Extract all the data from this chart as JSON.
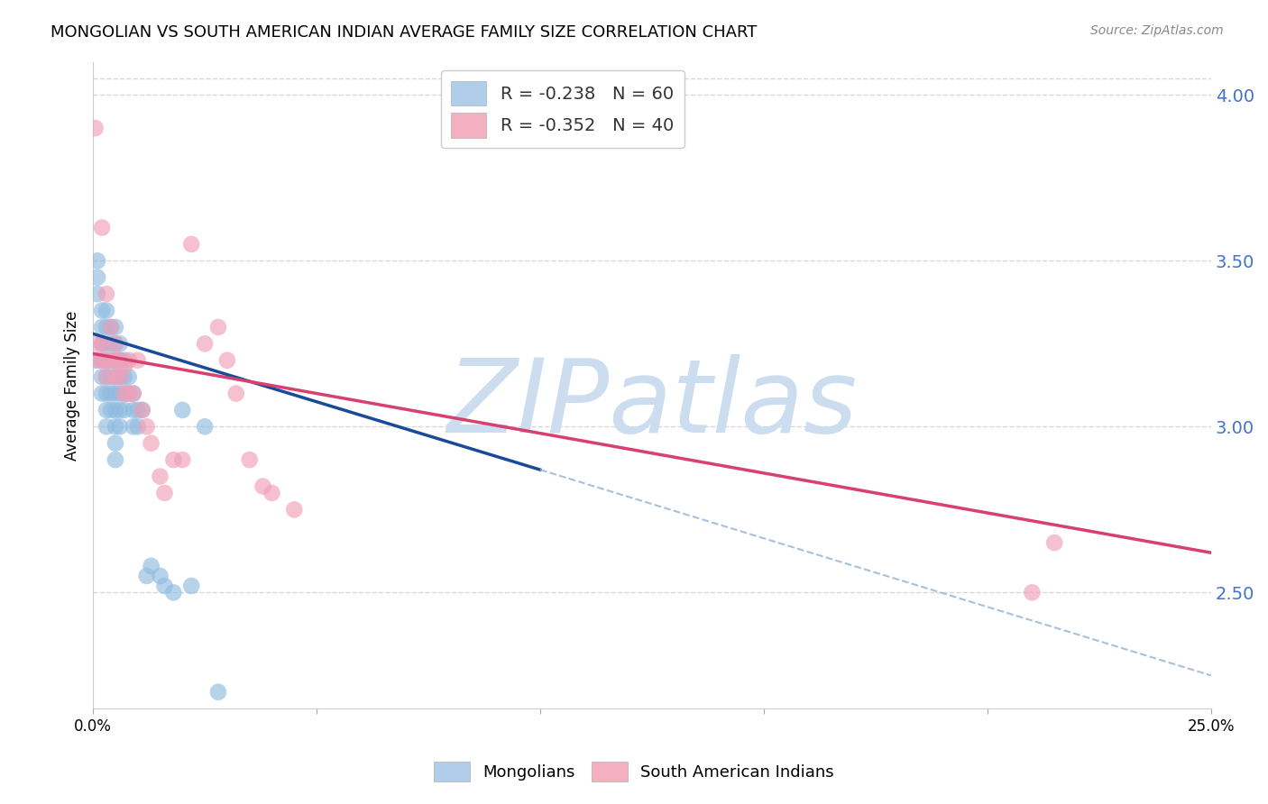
{
  "title": "MONGOLIAN VS SOUTH AMERICAN INDIAN AVERAGE FAMILY SIZE CORRELATION CHART",
  "source_text": "Source: ZipAtlas.com",
  "ylabel": "Average Family Size",
  "right_yticks": [
    2.5,
    3.0,
    3.5,
    4.0
  ],
  "right_ytick_color": "#4472c4",
  "legend_entries": [
    {
      "label": "R = -0.238   N = 60",
      "color": "#a8c8e8"
    },
    {
      "label": "R = -0.352   N = 40",
      "color": "#f4a8b8"
    }
  ],
  "legend_labels_bottom": [
    "Mongolians",
    "South American Indians"
  ],
  "watermark": "ZIPatlas",
  "watermark_color": "#ccddf0",
  "mongolian_color": "#90bce0",
  "sai_color": "#f0a0b8",
  "blue_line_color": "#1a4a9a",
  "pink_line_color": "#d84070",
  "dashed_line_color": "#a8c0d8",
  "mongolian_scatter": {
    "x": [
      0.0005,
      0.001,
      0.001,
      0.001,
      0.002,
      0.002,
      0.002,
      0.002,
      0.002,
      0.002,
      0.003,
      0.003,
      0.003,
      0.003,
      0.003,
      0.003,
      0.003,
      0.003,
      0.004,
      0.004,
      0.004,
      0.004,
      0.004,
      0.004,
      0.005,
      0.005,
      0.005,
      0.005,
      0.005,
      0.005,
      0.005,
      0.005,
      0.005,
      0.006,
      0.006,
      0.006,
      0.006,
      0.006,
      0.006,
      0.007,
      0.007,
      0.007,
      0.007,
      0.008,
      0.008,
      0.009,
      0.009,
      0.009,
      0.01,
      0.01,
      0.011,
      0.012,
      0.013,
      0.015,
      0.016,
      0.018,
      0.02,
      0.022,
      0.025,
      0.028
    ],
    "y": [
      3.2,
      3.5,
      3.45,
      3.4,
      3.35,
      3.3,
      3.25,
      3.2,
      3.15,
      3.1,
      3.35,
      3.3,
      3.25,
      3.2,
      3.15,
      3.1,
      3.05,
      3.0,
      3.3,
      3.25,
      3.2,
      3.15,
      3.1,
      3.05,
      3.3,
      3.25,
      3.2,
      3.15,
      3.1,
      3.05,
      3.0,
      2.95,
      2.9,
      3.25,
      3.2,
      3.15,
      3.1,
      3.05,
      3.0,
      3.2,
      3.15,
      3.1,
      3.05,
      3.15,
      3.1,
      3.1,
      3.05,
      3.0,
      3.05,
      3.0,
      3.05,
      2.55,
      2.58,
      2.55,
      2.52,
      2.5,
      3.05,
      2.52,
      3.0,
      2.2
    ]
  },
  "sai_scatter": {
    "x": [
      0.0005,
      0.001,
      0.001,
      0.002,
      0.002,
      0.002,
      0.003,
      0.003,
      0.003,
      0.004,
      0.004,
      0.005,
      0.005,
      0.005,
      0.006,
      0.006,
      0.007,
      0.007,
      0.008,
      0.008,
      0.009,
      0.01,
      0.011,
      0.012,
      0.013,
      0.015,
      0.016,
      0.018,
      0.02,
      0.022,
      0.025,
      0.028,
      0.03,
      0.032,
      0.035,
      0.038,
      0.04,
      0.045,
      0.21,
      0.215
    ],
    "y": [
      3.9,
      3.25,
      3.2,
      3.6,
      3.25,
      3.2,
      3.4,
      3.2,
      3.15,
      3.3,
      3.2,
      3.25,
      3.2,
      3.15,
      3.2,
      3.15,
      3.18,
      3.1,
      3.2,
      3.1,
      3.1,
      3.2,
      3.05,
      3.0,
      2.95,
      2.85,
      2.8,
      2.9,
      2.9,
      3.55,
      3.25,
      3.3,
      3.2,
      3.1,
      2.9,
      2.82,
      2.8,
      2.75,
      2.5,
      2.65
    ]
  },
  "blue_line_x": [
    0.0,
    0.1
  ],
  "blue_line_y": [
    3.28,
    2.87
  ],
  "pink_line_x": [
    0.0,
    0.25
  ],
  "pink_line_y": [
    3.22,
    2.62
  ],
  "dashed_line_x": [
    0.1,
    0.25
  ],
  "dashed_line_y": [
    2.87,
    2.25
  ],
  "xmin": 0.0,
  "xmax": 0.25,
  "ymin": 2.15,
  "ymax": 4.1,
  "x_tick_positions": [
    0.0,
    0.05,
    0.1,
    0.15,
    0.2,
    0.25
  ],
  "grid_color": "#d8d8d8",
  "background_color": "#ffffff",
  "title_fontsize": 13,
  "source_fontsize": 10,
  "scatter_size": 180
}
